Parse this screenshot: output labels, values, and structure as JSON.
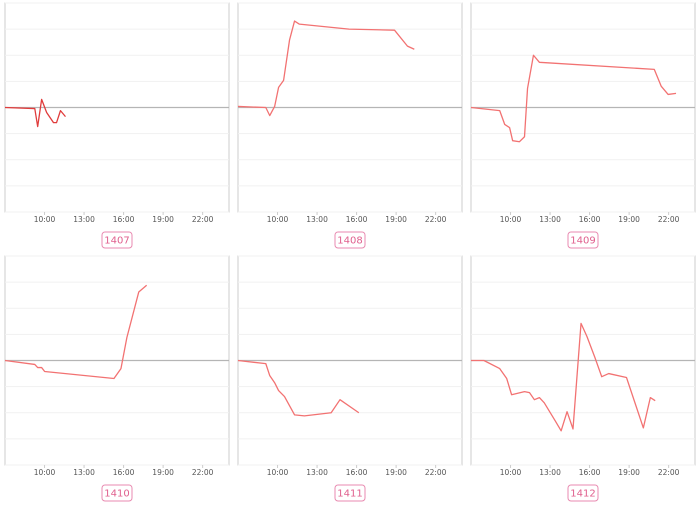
{
  "chart_data": [
    {
      "type": "line",
      "label": "1407",
      "color": "#e03c3c",
      "x": [
        7,
        9.26,
        9.48,
        9.78,
        10.16,
        10.68,
        10.91,
        11.21,
        11.59
      ],
      "values": [
        0,
        -0.04,
        -0.73,
        0.31,
        -0.19,
        -0.58,
        -0.58,
        -0.12,
        -0.35
      ],
      "xlim": [
        7,
        24
      ],
      "ylim": [
        -4,
        4
      ],
      "yticks": [
        -4,
        -3,
        -2,
        -1,
        0,
        1,
        2,
        3,
        4
      ],
      "grid": true,
      "xticks": [
        {
          "value": 10,
          "label": "10:00"
        },
        {
          "value": 13,
          "label": "13:00"
        },
        {
          "value": 16,
          "label": "16:00"
        },
        {
          "value": 19,
          "label": "19:00"
        },
        {
          "value": 22,
          "label": "22:00"
        }
      ]
    },
    {
      "type": "line",
      "label": "1408",
      "color": "#f27272",
      "x": [
        7,
        9.11,
        9.41,
        9.78,
        10.08,
        10.46,
        10.91,
        11.29,
        11.66,
        15.42,
        18.88,
        19.86,
        20.38
      ],
      "values": [
        0.04,
        0,
        -0.31,
        0.04,
        0.77,
        1.04,
        2.58,
        3.31,
        3.19,
        3.0,
        2.96,
        2.35,
        2.23
      ],
      "xlim": [
        7,
        24
      ],
      "ylim": [
        -4,
        4
      ],
      "yticks": [
        -4,
        -3,
        -2,
        -1,
        0,
        1,
        2,
        3,
        4
      ],
      "grid": true,
      "xticks": [
        {
          "value": 10,
          "label": "10:00"
        },
        {
          "value": 13,
          "label": "13:00"
        },
        {
          "value": 16,
          "label": "16:00"
        },
        {
          "value": 19,
          "label": "19:00"
        },
        {
          "value": 22,
          "label": "22:00"
        }
      ]
    },
    {
      "type": "line",
      "label": "1409",
      "color": "#f27272",
      "x": [
        7,
        9.18,
        9.56,
        9.93,
        10.16,
        10.68,
        11.06,
        11.29,
        11.74,
        12.19,
        20.91,
        21.44,
        21.96,
        22.56
      ],
      "values": [
        0,
        -0.12,
        -0.65,
        -0.77,
        -1.27,
        -1.31,
        -1.12,
        0.73,
        2.0,
        1.73,
        1.46,
        0.81,
        0.5,
        0.54
      ],
      "xlim": [
        7,
        24
      ],
      "ylim": [
        -4,
        4
      ],
      "yticks": [
        -4,
        -3,
        -2,
        -1,
        0,
        1,
        2,
        3,
        4
      ],
      "grid": true,
      "xticks": [
        {
          "value": 10,
          "label": "10:00"
        },
        {
          "value": 13,
          "label": "13:00"
        },
        {
          "value": 16,
          "label": "16:00"
        },
        {
          "value": 19,
          "label": "19:00"
        },
        {
          "value": 22,
          "label": "22:00"
        }
      ]
    },
    {
      "type": "line",
      "label": "1410",
      "color": "#f27272",
      "x": [
        7,
        9.26,
        9.48,
        9.78,
        10.01,
        15.27,
        15.8,
        16.25,
        17.15,
        17.75
      ],
      "values": [
        0,
        -0.15,
        -0.27,
        -0.27,
        -0.42,
        -0.69,
        -0.31,
        0.88,
        2.62,
        2.88
      ],
      "xlim": [
        7,
        24
      ],
      "ylim": [
        -4,
        4
      ],
      "yticks": [
        -4,
        -3,
        -2,
        -1,
        0,
        1,
        2,
        3,
        4
      ],
      "grid": true,
      "xticks": [
        {
          "value": 10,
          "label": "10:00"
        },
        {
          "value": 13,
          "label": "13:00"
        },
        {
          "value": 16,
          "label": "16:00"
        },
        {
          "value": 19,
          "label": "19:00"
        },
        {
          "value": 22,
          "label": "22:00"
        }
      ]
    },
    {
      "type": "line",
      "label": "1411",
      "color": "#f27272",
      "x": [
        7,
        9.11,
        9.41,
        9.78,
        10.08,
        10.53,
        11.29,
        12.04,
        14.07,
        14.74,
        16.17
      ],
      "values": [
        0,
        -0.12,
        -0.58,
        -0.85,
        -1.15,
        -1.38,
        -2.08,
        -2.12,
        -2.0,
        -1.5,
        -2.0
      ],
      "xlim": [
        7,
        24
      ],
      "ylim": [
        -4,
        4
      ],
      "yticks": [
        -4,
        -3,
        -2,
        -1,
        0,
        1,
        2,
        3,
        4
      ],
      "grid": true,
      "xticks": [
        {
          "value": 10,
          "label": "10:00"
        },
        {
          "value": 13,
          "label": "13:00"
        },
        {
          "value": 16,
          "label": "16:00"
        },
        {
          "value": 19,
          "label": "19:00"
        },
        {
          "value": 22,
          "label": "22:00"
        }
      ]
    },
    {
      "type": "line",
      "label": "1412",
      "color": "#f27272",
      "x": [
        7,
        7.98,
        9.18,
        9.71,
        10.08,
        11.06,
        11.44,
        11.81,
        12.19,
        12.56,
        13.39,
        13.84,
        14.29,
        14.74,
        15.35,
        15.8,
        16.4,
        16.92,
        17.45,
        18.8,
        20.08,
        20.61,
        20.98
      ],
      "values": [
        0,
        0,
        -0.31,
        -0.69,
        -1.31,
        -1.19,
        -1.23,
        -1.5,
        -1.42,
        -1.62,
        -2.31,
        -2.69,
        -1.96,
        -2.62,
        1.42,
        0.92,
        0.12,
        -0.62,
        -0.5,
        -0.65,
        -2.58,
        -1.42,
        -1.54
      ],
      "xlim": [
        7,
        24
      ],
      "ylim": [
        -4,
        4
      ],
      "yticks": [
        -4,
        -3,
        -2,
        -1,
        0,
        1,
        2,
        3,
        4
      ],
      "grid": true,
      "xticks": [
        {
          "value": 10,
          "label": "10:00"
        },
        {
          "value": 13,
          "label": "13:00"
        },
        {
          "value": 16,
          "label": "16:00"
        },
        {
          "value": 19,
          "label": "19:00"
        },
        {
          "value": 22,
          "label": "22:00"
        }
      ]
    }
  ]
}
